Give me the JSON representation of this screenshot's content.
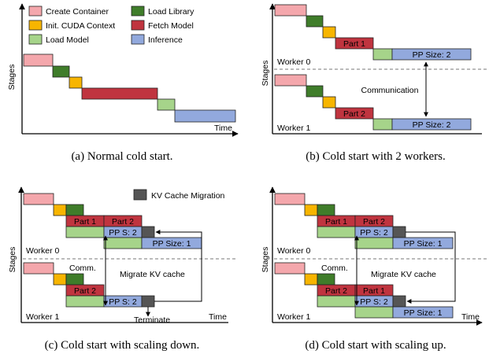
{
  "colors": {
    "create_container": "#f4a7ac",
    "init_cuda": "#f7b500",
    "load_model": "#a6d48a",
    "load_library": "#3f7d2a",
    "fetch_model": "#c0343f",
    "inference": "#92a9dd",
    "kv_migration": "#555555"
  },
  "legend": {
    "create_container": "Create Container",
    "init_cuda": "Init. CUDA Context",
    "load_model": "Load Model",
    "load_library": "Load Library",
    "fetch_model": "Fetch Model",
    "inference": "Inference",
    "kv_migration": "KV Cache Migration"
  },
  "axes": {
    "ylabel": "Stages",
    "xlabel": "Time"
  },
  "panels": {
    "a": {
      "caption": "(a) Normal cold start."
    },
    "b": {
      "caption": "(b) Cold start with 2 workers.",
      "worker0": "Worker 0",
      "worker1": "Worker 1",
      "part1": "Part 1",
      "part2": "Part 2",
      "pp": "PP Size: 2",
      "comm": "Communication"
    },
    "c": {
      "caption": "(c) Cold start with scaling down.",
      "worker0": "Worker 0",
      "worker1": "Worker 1",
      "part1": "Part 1",
      "part2": "Part 2",
      "pps2": "PP S: 2",
      "pp1": "PP Size: 1",
      "comm": "Comm.",
      "migrate": "Migrate KV cache",
      "terminate": "Terminate"
    },
    "d": {
      "caption": "(d) Cold start with scaling up.",
      "worker0": "Worker 0",
      "worker1": "Worker 1",
      "part1": "Part 1",
      "part2": "Part 2",
      "pps2": "PP S: 2",
      "pp1": "PP Size: 1",
      "comm": "Comm.",
      "migrate": "Migrate KV cache"
    }
  }
}
